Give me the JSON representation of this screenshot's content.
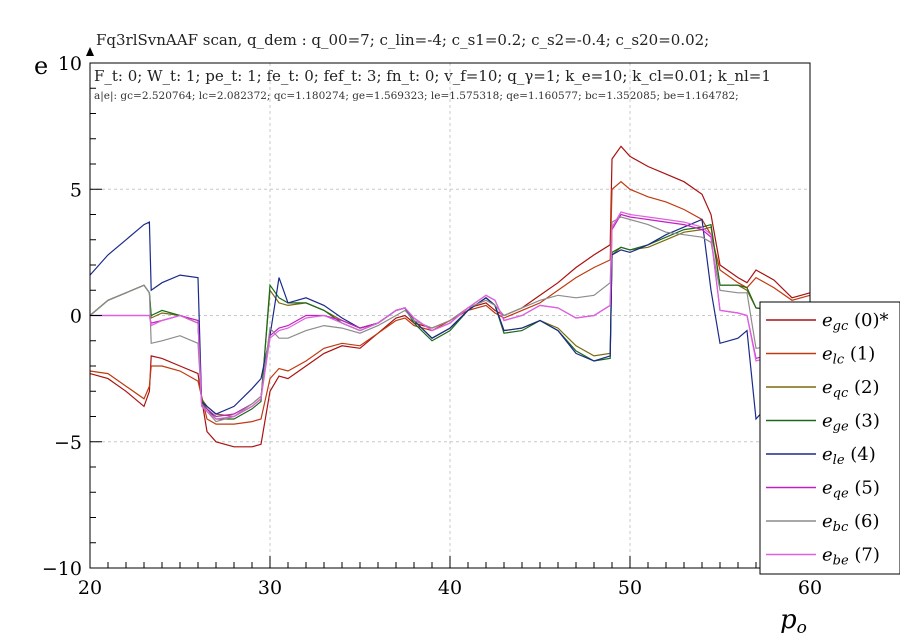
{
  "header": {
    "title": "Fq3rlSvnAAF scan, q_dem : q_00=7; c_lin=-4; c_s1=0.2; c_s2=-0.4; c_s20=0.02;",
    "params": "F_t: 0; W_t: 1; pe_t: 1; fe_t: 0; fef_t: 3; fn_t: 0; v_f=10; q_γ=1; k_e=10; k_cl=0.01; k_nl=1",
    "norms": "a|e|: gc=2.520764; lc=2.082372; qc=1.180274; ge=1.569323; le=1.575318; qe=1.160577; bc=1.352085; be=1.164782;"
  },
  "chart_data": {
    "type": "line",
    "title": "Fq3rlSvnAAF scan",
    "xlabel": "p_o",
    "ylabel": "e",
    "xlim": [
      20,
      60
    ],
    "ylim": [
      -10,
      10
    ],
    "xticks": [
      20,
      30,
      40,
      50,
      60
    ],
    "yticks": [
      -10,
      -5,
      0,
      5,
      10
    ],
    "xtick_labels": [
      "20",
      "30",
      "40",
      "50",
      "60"
    ],
    "ytick_labels": [
      "−10",
      "−5",
      "0",
      "5",
      "10"
    ],
    "grid": true,
    "legend_position": "right",
    "x": [
      20,
      21,
      22,
      23,
      23.3,
      23.4,
      24,
      25,
      26,
      26.2,
      26.5,
      27,
      28,
      29,
      29.5,
      30,
      30.5,
      31,
      32,
      33,
      34,
      35,
      36,
      37,
      37.5,
      38,
      39,
      40,
      41,
      42,
      42.5,
      43,
      44,
      45,
      46,
      47,
      48,
      48.9,
      49.0,
      49.5,
      50,
      51,
      52,
      53,
      54,
      54.5,
      55,
      56,
      56.5,
      57,
      58,
      59,
      60
    ],
    "series": [
      {
        "name": "e_gc (0)*",
        "color": "#aa1111",
        "values": [
          -2.3,
          -2.5,
          -3.0,
          -3.6,
          -3.0,
          -1.6,
          -1.7,
          -2.0,
          -2.3,
          -3.3,
          -4.6,
          -5.0,
          -5.2,
          -5.2,
          -5.1,
          -3.0,
          -2.4,
          -2.5,
          -2.0,
          -1.5,
          -1.2,
          -1.3,
          -0.7,
          -0.1,
          0.0,
          -0.3,
          -0.5,
          -0.2,
          0.3,
          0.5,
          0.2,
          0.0,
          0.3,
          0.8,
          1.3,
          1.9,
          2.4,
          2.8,
          6.2,
          6.7,
          6.3,
          5.9,
          5.6,
          5.3,
          4.8,
          4.0,
          2.0,
          1.5,
          1.3,
          1.8,
          1.4,
          0.7,
          0.9
        ]
      },
      {
        "name": "e_lc (1)",
        "color": "#c03a10",
        "values": [
          -2.2,
          -2.3,
          -2.8,
          -3.3,
          -2.8,
          -2.0,
          -2.0,
          -2.2,
          -2.6,
          -3.2,
          -4.1,
          -4.3,
          -4.3,
          -4.2,
          -4.1,
          -2.5,
          -2.1,
          -2.2,
          -1.8,
          -1.3,
          -1.1,
          -1.2,
          -0.7,
          -0.2,
          -0.1,
          -0.4,
          -0.6,
          -0.2,
          0.2,
          0.4,
          0.1,
          -0.1,
          0.2,
          0.5,
          1.0,
          1.5,
          1.9,
          2.2,
          5.0,
          5.3,
          5.0,
          4.7,
          4.5,
          4.2,
          3.8,
          3.2,
          1.8,
          1.3,
          1.1,
          1.5,
          1.1,
          0.6,
          0.8
        ]
      },
      {
        "name": "e_qc (2)",
        "color": "#7a6a10",
        "values": [
          0.0,
          0.6,
          0.9,
          1.2,
          0.9,
          -0.1,
          0.1,
          0.0,
          -0.3,
          -3.3,
          -3.6,
          -3.9,
          -4.0,
          -3.6,
          -3.3,
          1.0,
          0.5,
          0.4,
          0.5,
          0.2,
          -0.2,
          -0.5,
          -0.3,
          0.2,
          0.3,
          -0.2,
          -0.9,
          -0.5,
          0.2,
          0.7,
          0.4,
          -0.6,
          -0.5,
          -0.2,
          -0.5,
          -1.2,
          -1.6,
          -1.5,
          2.4,
          2.7,
          2.6,
          2.7,
          3.0,
          3.3,
          3.4,
          3.5,
          1.2,
          1.2,
          1.0,
          0.3,
          0.2,
          0.3,
          0.5
        ]
      },
      {
        "name": "e_ge (3)",
        "color": "#1a6a1a",
        "values": [
          0.0,
          0.6,
          0.9,
          1.2,
          0.9,
          0.0,
          0.2,
          0.0,
          -0.3,
          -3.4,
          -3.7,
          -4.1,
          -4.1,
          -3.7,
          -3.4,
          1.2,
          0.7,
          0.5,
          0.5,
          0.2,
          -0.3,
          -0.6,
          -0.3,
          0.2,
          0.3,
          -0.3,
          -1.0,
          -0.6,
          0.2,
          0.7,
          0.4,
          -0.7,
          -0.6,
          -0.2,
          -0.6,
          -1.4,
          -1.8,
          -1.7,
          2.5,
          2.7,
          2.6,
          2.8,
          3.1,
          3.4,
          3.5,
          3.6,
          1.2,
          1.2,
          1.1,
          0.3,
          0.2,
          0.3,
          0.5
        ]
      },
      {
        "name": "e_le (4)",
        "color": "#1a2a8a",
        "values": [
          1.6,
          2.4,
          3.0,
          3.6,
          3.7,
          1.0,
          1.3,
          1.6,
          1.5,
          -3.4,
          -3.6,
          -3.9,
          -3.6,
          -2.9,
          -2.5,
          -0.8,
          1.5,
          0.5,
          0.7,
          0.4,
          -0.1,
          -0.5,
          -0.3,
          0.2,
          0.3,
          -0.2,
          -0.9,
          -0.5,
          0.2,
          0.7,
          0.4,
          -0.6,
          -0.5,
          -0.2,
          -0.6,
          -1.5,
          -1.8,
          -1.6,
          2.4,
          2.6,
          2.5,
          2.8,
          3.2,
          3.5,
          3.8,
          1.0,
          -1.1,
          -0.9,
          -0.6,
          -4.1,
          -3.3,
          -2.5,
          -2.3
        ]
      },
      {
        "name": "e_qe (5)",
        "color": "#c020c0",
        "values": [
          0.0,
          0.0,
          0.0,
          0.0,
          0.0,
          -0.3,
          -0.2,
          0.0,
          -0.2,
          -3.5,
          -3.7,
          -4.0,
          -3.9,
          -3.5,
          -3.2,
          -0.8,
          -0.5,
          -0.4,
          0.0,
          0.0,
          -0.2,
          -0.5,
          -0.3,
          0.2,
          0.3,
          -0.1,
          -0.6,
          -0.3,
          0.3,
          0.8,
          0.6,
          -0.2,
          0.0,
          0.4,
          0.3,
          -0.1,
          0.0,
          0.4,
          3.4,
          4.0,
          3.9,
          3.8,
          3.7,
          3.6,
          3.4,
          3.1,
          0.2,
          0.1,
          0.0,
          -1.7,
          -1.5,
          -1.5,
          -1.6
        ]
      },
      {
        "name": "e_bc (6)",
        "color": "#8c8c8c",
        "values": [
          0.0,
          0.6,
          0.9,
          1.2,
          0.9,
          -1.1,
          -1.0,
          -0.8,
          -1.1,
          -3.5,
          -3.8,
          -4.2,
          -4.0,
          -3.5,
          -3.2,
          -0.5,
          -0.9,
          -0.9,
          -0.6,
          -0.4,
          -0.5,
          -0.7,
          -0.4,
          0.0,
          0.2,
          -0.2,
          -0.5,
          -0.2,
          0.3,
          0.6,
          0.4,
          0.0,
          0.3,
          0.6,
          0.8,
          0.7,
          0.8,
          1.3,
          3.7,
          3.9,
          3.8,
          3.6,
          3.3,
          3.2,
          3.1,
          2.9,
          1.0,
          0.9,
          0.9,
          -1.3,
          -1.2,
          -1.2,
          -1.4
        ]
      },
      {
        "name": "e_be (7)",
        "color": "#e060e0",
        "values": [
          0.0,
          0.0,
          0.0,
          0.0,
          0.0,
          -0.4,
          -0.2,
          0.0,
          -0.3,
          -3.6,
          -3.8,
          -4.1,
          -4.0,
          -3.6,
          -3.3,
          -0.9,
          -0.6,
          -0.5,
          -0.1,
          0.0,
          -0.3,
          -0.6,
          -0.3,
          0.2,
          0.3,
          -0.1,
          -0.6,
          -0.3,
          0.3,
          0.8,
          0.6,
          -0.2,
          0.0,
          0.4,
          0.3,
          -0.1,
          0.0,
          0.4,
          3.5,
          4.1,
          4.0,
          3.9,
          3.8,
          3.7,
          3.5,
          3.2,
          0.2,
          0.1,
          0.0,
          -1.8,
          -1.6,
          -1.6,
          -1.7
        ]
      }
    ]
  }
}
